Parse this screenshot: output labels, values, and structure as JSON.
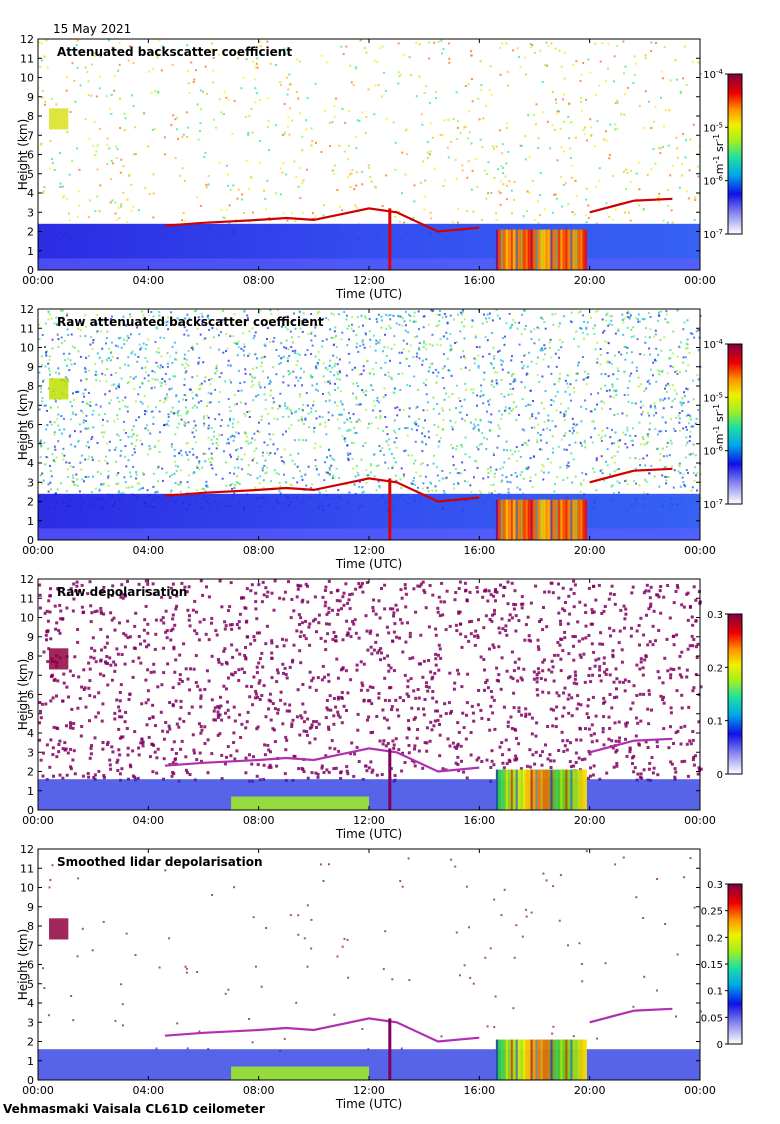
{
  "date_label": "15 May 2021",
  "footer": "Vehmasmaki Vaisala CL61D ceilometer",
  "chart_data": [
    {
      "type": "heatmap",
      "title": "Attenuated backscatter coefficient",
      "xlabel": "Time (UTC)",
      "ylabel": "Height (km)",
      "x_ticks": [
        "00:00",
        "04:00",
        "08:00",
        "12:00",
        "16:00",
        "20:00",
        "00:00"
      ],
      "y_ticks": [
        "0",
        "1",
        "2",
        "3",
        "4",
        "5",
        "6",
        "7",
        "8",
        "9",
        "10",
        "11",
        "12"
      ],
      "ylim": [
        0,
        12
      ],
      "colorbar": {
        "scale": "log",
        "range": [
          1e-07,
          0.0001
        ],
        "ticks": [
          {
            "base": "10",
            "exp": "-4"
          },
          {
            "base": "10",
            "exp": "-5"
          },
          {
            "base": "10",
            "exp": "-6"
          },
          {
            "base": "10",
            "exp": "-7"
          }
        ],
        "unit_parts": [
          {
            "t": "m"
          },
          {
            "t": "-1",
            "sup": true
          },
          {
            "t": " sr"
          },
          {
            "t": "-1",
            "sup": true
          }
        ]
      },
      "noise_density": 0.28
    },
    {
      "type": "heatmap",
      "title": "Raw attenuated backscatter coefficient",
      "xlabel": "Time (UTC)",
      "ylabel": "Height (km)",
      "x_ticks": [
        "00:00",
        "04:00",
        "08:00",
        "12:00",
        "16:00",
        "20:00",
        "00:00"
      ],
      "y_ticks": [
        "0",
        "1",
        "2",
        "3",
        "4",
        "5",
        "6",
        "7",
        "8",
        "9",
        "10",
        "11",
        "12"
      ],
      "ylim": [
        0,
        12
      ],
      "colorbar": {
        "scale": "log",
        "range": [
          1e-07,
          0.0001
        ],
        "ticks": [
          {
            "base": "10",
            "exp": "-4"
          },
          {
            "base": "10",
            "exp": "-5"
          },
          {
            "base": "10",
            "exp": "-6"
          },
          {
            "base": "10",
            "exp": "-7"
          }
        ],
        "unit_parts": [
          {
            "t": "m"
          },
          {
            "t": "-1",
            "sup": true
          },
          {
            "t": " sr"
          },
          {
            "t": "-1",
            "sup": true
          }
        ]
      },
      "noise_density": 0.9
    },
    {
      "type": "heatmap",
      "title": "Raw depolarisation",
      "xlabel": "Time (UTC)",
      "ylabel": "Height (km)",
      "x_ticks": [
        "00:00",
        "04:00",
        "08:00",
        "12:00",
        "16:00",
        "20:00",
        "00:00"
      ],
      "y_ticks": [
        "0",
        "1",
        "2",
        "3",
        "4",
        "5",
        "6",
        "7",
        "8",
        "9",
        "10",
        "11",
        "12"
      ],
      "ylim": [
        0,
        12
      ],
      "colorbar": {
        "scale": "linear",
        "range": [
          0,
          0.3
        ],
        "ticks": [
          {
            "base": "0.3"
          },
          {
            "base": "0.2"
          },
          {
            "base": "0.1"
          },
          {
            "base": "0"
          }
        ]
      },
      "noise_density": 0.55
    },
    {
      "type": "heatmap",
      "title": "Smoothed lidar depolarisation",
      "xlabel": "Time (UTC)",
      "ylabel": "Height (km)",
      "x_ticks": [
        "00:00",
        "04:00",
        "08:00",
        "12:00",
        "16:00",
        "20:00",
        "00:00"
      ],
      "y_ticks": [
        "0",
        "1",
        "2",
        "3",
        "4",
        "5",
        "6",
        "7",
        "8",
        "9",
        "10",
        "11",
        "12"
      ],
      "ylim": [
        0,
        12
      ],
      "colorbar": {
        "scale": "linear",
        "range": [
          0,
          0.3
        ],
        "ticks": [
          {
            "base": "0.3"
          },
          {
            "base": "0.25"
          },
          {
            "base": "0.2"
          },
          {
            "base": "0.15"
          },
          {
            "base": "0.1"
          },
          {
            "base": "0.05"
          },
          {
            "base": "0"
          }
        ]
      },
      "noise_density": 0.04
    }
  ]
}
